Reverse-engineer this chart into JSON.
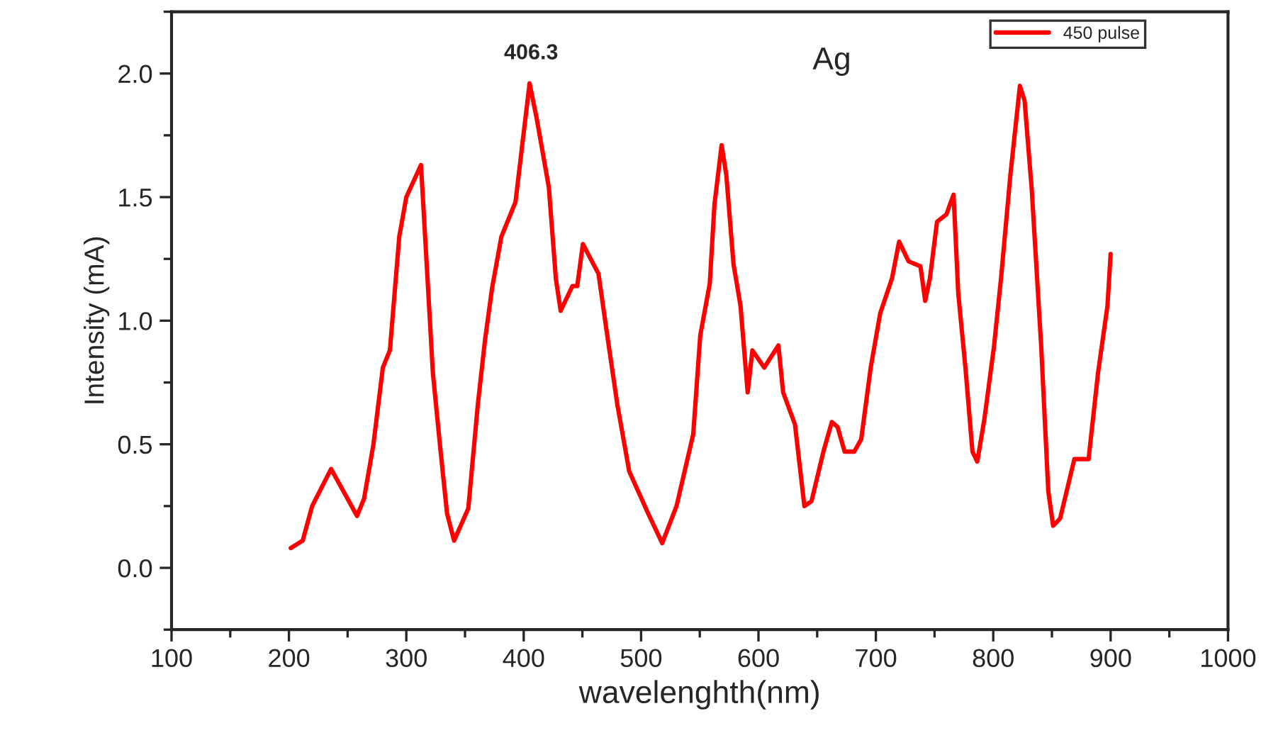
{
  "chart_data": {
    "type": "line",
    "xlabel": "wavelenghth(nm)",
    "ylabel": "Intensity (mA)",
    "xlim": [
      100,
      1000
    ],
    "xticks": [
      100,
      200,
      300,
      400,
      500,
      600,
      700,
      800,
      900,
      1000
    ],
    "ylim": [
      -0.25,
      2.25
    ],
    "yticks": [
      {
        "value": 0,
        "label": "0.0"
      },
      0.5,
      {
        "value": 1,
        "label": "1.0"
      },
      1.5,
      {
        "value": 2,
        "label": "2.0"
      }
    ],
    "grid": false,
    "legend": "top right",
    "marker": "none",
    "line_style": "solid",
    "annotations": [
      {
        "text": "406.3",
        "x": 406.3,
        "y": 1.96
      },
      "Ag"
    ],
    "series": [
      {
        "name": "450 pulse",
        "color": "#ff0000",
        "x": [
          201.6,
          211.7,
          219.8,
          235.9,
          258,
          264,
          272,
          280,
          286,
          294,
          300,
          312.5,
          316.5,
          322.6,
          328.6,
          334.7,
          340.7,
          352.8,
          360.9,
          367,
          373,
          381,
          393,
          399,
          405,
          411,
          421.4,
          427.4,
          431.5,
          441.5,
          445.6,
          450.4,
          463.7,
          471.8,
          479.8,
          489.9,
          506,
          518,
          530.2,
          544.4,
          550.4,
          558.5,
          562.5,
          568.6,
          572.6,
          578.7,
          584.7,
          590.8,
          594.8,
          604.9,
          617,
          621,
          631.1,
          639.1,
          645.2,
          655.3,
          662.5,
          667.4,
          673.4,
          681.5,
          687.5,
          695.6,
          703.7,
          713.7,
          719.8,
          727.9,
          738,
          742,
          746,
          752.1,
          760.1,
          766.2,
          770.2,
          776.3,
          782.3,
          786.4,
          792.4,
          800.5,
          806.6,
          814.6,
          822.7,
          826.7,
          832.8,
          840.8,
          846.9,
          851,
          857,
          869.1,
          881.2,
          889.3,
          897.3,
          900
        ],
        "values": [
          0.08,
          0.11,
          0.25,
          0.4,
          0.21,
          0.28,
          0.5,
          0.81,
          0.88,
          1.34,
          1.5,
          1.63,
          1.3,
          0.79,
          0.5,
          0.22,
          0.11,
          0.24,
          0.66,
          0.92,
          1.13,
          1.34,
          1.48,
          1.72,
          1.96,
          1.82,
          1.54,
          1.17,
          1.04,
          1.14,
          1.14,
          1.31,
          1.19,
          0.92,
          0.66,
          0.39,
          0.22,
          0.1,
          0.25,
          0.54,
          0.94,
          1.15,
          1.47,
          1.71,
          1.59,
          1.23,
          1.06,
          0.71,
          0.88,
          0.81,
          0.9,
          0.71,
          0.58,
          0.25,
          0.27,
          0.47,
          0.59,
          0.57,
          0.47,
          0.47,
          0.52,
          0.81,
          1.03,
          1.17,
          1.32,
          1.24,
          1.22,
          1.08,
          1.17,
          1.4,
          1.43,
          1.51,
          1.11,
          0.81,
          0.47,
          0.43,
          0.6,
          0.89,
          1.17,
          1.59,
          1.95,
          1.89,
          1.53,
          0.9,
          0.31,
          0.17,
          0.2,
          0.44,
          0.44,
          0.79,
          1.06,
          1.27
        ]
      }
    ]
  }
}
